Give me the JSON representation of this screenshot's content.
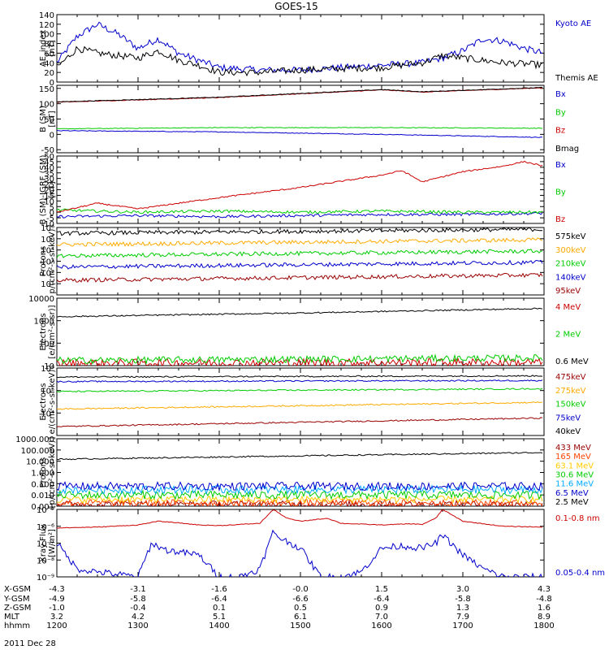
{
  "title": "GOES-15",
  "date_label": "2011 Dec 28",
  "time_axis": {
    "row_labels": [
      "X-GSM",
      "Y-GSM",
      "Z-GSM",
      "MLT",
      "hhmm"
    ],
    "columns": [
      {
        "time": "1200",
        "values": [
          "-4.3",
          "-4.9",
          "-1.0",
          "3.2",
          "1200"
        ]
      },
      {
        "time": "1300",
        "values": [
          "-3.1",
          "-5.8",
          "-0.4",
          "4.2",
          "1300"
        ]
      },
      {
        "time": "1400",
        "values": [
          "-1.6",
          "-6.4",
          "0.1",
          "5.1",
          "1400"
        ]
      },
      {
        "time": "1500",
        "values": [
          "-0.0",
          "-6.6",
          "0.5",
          "6.1",
          "1500"
        ]
      },
      {
        "time": "1600",
        "values": [
          "1.5",
          "-6.4",
          "0.9",
          "7.0",
          "1600"
        ]
      },
      {
        "time": "1700",
        "values": [
          "3.0",
          "-5.8",
          "1.3",
          "7.9",
          "1700"
        ]
      },
      {
        "time": "1800",
        "values": [
          "4.3",
          "-4.8",
          "1.6",
          "8.9",
          "1800"
        ]
      }
    ]
  },
  "chart_data": [
    {
      "type": "line",
      "name": "ae",
      "ylabel": [
        "AE_index",
        "[nT]"
      ],
      "yscale": "linear",
      "ylim": [
        0,
        140
      ],
      "yticks": [
        "0",
        "20",
        "40",
        "60",
        "80",
        "100",
        "120",
        "140"
      ],
      "series": [
        {
          "name": "Kyoto AE",
          "color": "#0000cc",
          "noise": 0.05,
          "x": [
            "1200",
            "1215",
            "1230",
            "1245",
            "1300",
            "1315",
            "1330",
            "1345",
            "1400",
            "1430",
            "1500",
            "1530",
            "1600",
            "1630",
            "1645",
            "1700",
            "1715",
            "1730",
            "1745",
            "1800"
          ],
          "y": [
            40,
            95,
            120,
            100,
            70,
            90,
            60,
            45,
            30,
            25,
            25,
            30,
            35,
            40,
            50,
            65,
            90,
            85,
            70,
            60
          ]
        },
        {
          "name": "Themis AE",
          "color": "#000000",
          "noise": 0.05,
          "x": [
            "1200",
            "1215",
            "1230",
            "1245",
            "1300",
            "1315",
            "1330",
            "1345",
            "1400",
            "1430",
            "1500",
            "1530",
            "1600",
            "1630",
            "1645",
            "1700",
            "1715",
            "1730",
            "1745",
            "1800"
          ],
          "y": [
            30,
            70,
            60,
            55,
            50,
            65,
            45,
            35,
            20,
            20,
            25,
            28,
            30,
            40,
            55,
            50,
            45,
            40,
            38,
            35
          ]
        }
      ]
    },
    {
      "type": "line",
      "name": "b_sm",
      "ylabel": [
        "B (SM)",
        "[nT]"
      ],
      "yscale": "linear",
      "ylim": [
        -60,
        160
      ],
      "yticks": [
        "-50",
        "0",
        "50",
        "100",
        "150"
      ],
      "series": [
        {
          "name": "Bx",
          "color": "#0000cc",
          "noise": 0.005,
          "x": [
            "1200",
            "1400",
            "1600",
            "1800"
          ],
          "y": [
            12,
            8,
            0,
            -10
          ]
        },
        {
          "name": "By",
          "color": "#00cc00",
          "noise": 0.005,
          "x": [
            "1200",
            "1400",
            "1600",
            "1800"
          ],
          "y": [
            18,
            22,
            22,
            20
          ]
        },
        {
          "name": "Bz",
          "color": "#cc0000",
          "noise": 0.005,
          "x": [
            "1200",
            "1400",
            "1600",
            "1630",
            "1800"
          ],
          "y": [
            105,
            120,
            145,
            138,
            152
          ]
        },
        {
          "name": "Bmag",
          "color": "#000000",
          "noise": 0.005,
          "x": [
            "1200",
            "1400",
            "1600",
            "1630",
            "1800"
          ],
          "y": [
            106,
            121,
            146,
            139,
            153
          ]
        }
      ]
    },
    {
      "type": "line",
      "name": "b_igrf",
      "ylabel": [
        "B (SM)-IGRF (SM)",
        "[nT]"
      ],
      "yscale": "linear",
      "ylim": [
        -10,
        50
      ],
      "yticks": [
        "-10",
        "-5",
        "0",
        "5",
        "10",
        "15",
        "20",
        "25",
        "30",
        "35",
        "40",
        "45",
        "50"
      ],
      "series": [
        {
          "name": "Bx",
          "color": "#0000cc",
          "noise": 0.02,
          "x": [
            "1200",
            "1300",
            "1400",
            "1500",
            "1600",
            "1700",
            "1800"
          ],
          "y": [
            -4,
            -3,
            -4,
            -3,
            -2,
            -2,
            -1
          ]
        },
        {
          "name": "By",
          "color": "#00cc00",
          "noise": 0.02,
          "x": [
            "1200",
            "1300",
            "1400",
            "1500",
            "1600",
            "1700",
            "1800"
          ],
          "y": [
            2,
            0,
            1,
            0,
            1,
            0,
            0
          ]
        },
        {
          "name": "Bz",
          "color": "#cc0000",
          "noise": 0.01,
          "x": [
            "1200",
            "1230",
            "1300",
            "1330",
            "1400",
            "1500",
            "1600",
            "1615",
            "1630",
            "1700",
            "1730",
            "1745",
            "1800"
          ],
          "y": [
            0,
            8,
            3,
            8,
            13,
            22,
            33,
            37,
            27,
            36,
            41,
            45,
            41
          ]
        }
      ]
    },
    {
      "type": "line",
      "name": "protons_low",
      "ylabel": [
        "Protons",
        "p/(cm²-s-sr-keV)"
      ],
      "yscale": "log",
      "ylim": [
        1,
        1000000
      ],
      "yticks": [
        "10¹",
        "10²",
        "10³",
        "10⁴",
        "10⁵",
        "10⁶"
      ],
      "series": [
        {
          "name": "575keV",
          "color": "#000000",
          "noise": 0.03,
          "x": [
            "1200",
            "1800"
          ],
          "y": [
            300000,
            700000
          ]
        },
        {
          "name": "300keV",
          "color": "#ffaa00",
          "noise": 0.03,
          "x": [
            "1200",
            "1800"
          ],
          "y": [
            30000,
            80000
          ]
        },
        {
          "name": "210keV",
          "color": "#00cc00",
          "noise": 0.03,
          "x": [
            "1200",
            "1800"
          ],
          "y": [
            3000,
            8000
          ]
        },
        {
          "name": "140keV",
          "color": "#0000cc",
          "noise": 0.03,
          "x": [
            "1200",
            "1800"
          ],
          "y": [
            300,
            800
          ]
        },
        {
          "name": "95keV",
          "color": "#990000",
          "noise": 0.03,
          "x": [
            "1200",
            "1800"
          ],
          "y": [
            20,
            60
          ]
        }
      ]
    },
    {
      "type": "line",
      "name": "electrons_mev",
      "ylabel": [
        "Electrons",
        "[e/(cm²-s-sr)]"
      ],
      "yscale": "log",
      "ylim": [
        10,
        10000
      ],
      "yticks": [
        "10",
        "100",
        "1000",
        "10000"
      ],
      "series": [
        {
          "name": "4 MeV",
          "color": "#cc0000",
          "noise": 0.06,
          "x": [
            "1200",
            "1800"
          ],
          "y": [
            13,
            14
          ]
        },
        {
          "name": "2 MeV",
          "color": "#00cc00",
          "noise": 0.05,
          "x": [
            "1200",
            "1800"
          ],
          "y": [
            17,
            22
          ]
        },
        {
          "name": "0.6 MeV",
          "color": "#000000",
          "noise": 0.01,
          "x": [
            "1200",
            "1500",
            "1800"
          ],
          "y": [
            1500,
            2200,
            3500
          ]
        }
      ]
    },
    {
      "type": "line",
      "name": "electrons_kev",
      "ylabel": [
        "Electrons",
        "e/(cm²-s-sr-keV)"
      ],
      "yscale": "log",
      "ylim": [
        1000,
        1000000
      ],
      "yticks": [
        "10⁴",
        "10⁵",
        "10⁶"
      ],
      "series": [
        {
          "name": "475keV",
          "color": "#990000",
          "noise": 0.01,
          "x": [
            "1200",
            "1800"
          ],
          "y": [
            2500,
            6000
          ]
        },
        {
          "name": "275keV",
          "color": "#ffaa00",
          "noise": 0.01,
          "x": [
            "1200",
            "1800"
          ],
          "y": [
            15000,
            30000
          ]
        },
        {
          "name": "150keV",
          "color": "#00cc00",
          "noise": 0.01,
          "x": [
            "1200",
            "1800"
          ],
          "y": [
            90000,
            120000
          ]
        },
        {
          "name": "75keV",
          "color": "#0000cc",
          "noise": 0.01,
          "x": [
            "1200",
            "1800"
          ],
          "y": [
            250000,
            280000
          ]
        },
        {
          "name": "40keV",
          "color": "#000000",
          "noise": 0.01,
          "x": [
            "1200",
            "1800"
          ],
          "y": [
            400000,
            450000
          ]
        }
      ]
    },
    {
      "type": "line",
      "name": "protons_mev",
      "ylabel": [
        "Protons",
        "[p/(cm²-s-sr-keV)]"
      ],
      "yscale": "log",
      "ylim": [
        0.001,
        1000
      ],
      "yticks": [
        "0.001",
        "0.010",
        "0.100",
        "1.000",
        "10.000",
        "100.000",
        "1000.000"
      ],
      "series": [
        {
          "name": "433 MeV",
          "color": "#990000",
          "noise": 0.05,
          "x": [
            "1200",
            "1800"
          ],
          "y": [
            0.0015,
            0.0015
          ]
        },
        {
          "name": "165 MeV",
          "color": "#ff4400",
          "noise": 0.05,
          "x": [
            "1200",
            "1800"
          ],
          "y": [
            0.002,
            0.002
          ]
        },
        {
          "name": "63.1 MeV",
          "color": "#ffcc00",
          "noise": 0.05,
          "x": [
            "1200",
            "1800"
          ],
          "y": [
            0.004,
            0.004
          ]
        },
        {
          "name": "30.6 MeV",
          "color": "#00cc00",
          "noise": 0.06,
          "x": [
            "1200",
            "1800"
          ],
          "y": [
            0.01,
            0.01
          ]
        },
        {
          "name": "11.6 MeV",
          "color": "#00aaff",
          "noise": 0.06,
          "x": [
            "1200",
            "1800"
          ],
          "y": [
            0.03,
            0.03
          ]
        },
        {
          "name": "6.5 MeV",
          "color": "#0000cc",
          "noise": 0.06,
          "x": [
            "1200",
            "1800"
          ],
          "y": [
            0.06,
            0.06
          ]
        },
        {
          "name": "2.5 MeV",
          "color": "#000000",
          "noise": 0.01,
          "x": [
            "1200",
            "1500",
            "1800"
          ],
          "y": [
            15,
            30,
            60
          ]
        }
      ]
    },
    {
      "type": "line",
      "name": "xray",
      "ylabel": [
        "Xray Flux",
        "[W/m²]"
      ],
      "yscale": "log",
      "ylim": [
        1e-09,
        1e-05
      ],
      "yticks": [
        "10⁻⁹",
        "10⁻⁸",
        "10⁻⁷",
        "10⁻⁶",
        "10⁻⁵"
      ],
      "series": [
        {
          "name": "0.1-0.8 nm",
          "color": "#cc0000",
          "noise": 0.005,
          "x": [
            "1200",
            "1230",
            "1300",
            "1315",
            "1330",
            "1345",
            "1400",
            "1430",
            "1440",
            "1450",
            "1500",
            "1520",
            "1530",
            "1600",
            "1620",
            "1630",
            "1640",
            "1645",
            "1700",
            "1730",
            "1800"
          ],
          "y": [
            8e-07,
            9e-07,
            1.2e-06,
            2e-06,
            1.6e-06,
            1.2e-06,
            1.1e-06,
            1.5e-06,
            1e-05,
            3e-06,
            2e-06,
            3e-06,
            1.5e-06,
            1.2e-06,
            1.4e-06,
            1.3e-06,
            3e-06,
            1e-05,
            2e-06,
            1e-06,
            9e-07
          ]
        },
        {
          "name": "0.05-0.4 nm",
          "color": "#0000cc",
          "noise": 0.05,
          "x": [
            "1200",
            "1215",
            "1230",
            "1300",
            "1310",
            "1320",
            "1330",
            "1345",
            "1400",
            "1415",
            "1430",
            "1440",
            "1445",
            "1500",
            "1515",
            "1530",
            "1545",
            "1600",
            "1615",
            "1630",
            "1640",
            "1645",
            "1700",
            "1715",
            "1730",
            "1745",
            "1800"
          ],
          "y": [
            1e-07,
            3e-09,
            2e-09,
            1e-09,
            1e-07,
            4e-08,
            3e-08,
            2e-08,
            1e-09,
            1e-09,
            3e-09,
            5e-07,
            2e-07,
            5e-08,
            1e-09,
            1e-09,
            2e-09,
            5e-08,
            7e-08,
            5e-08,
            1e-07,
            3e-07,
            2e-08,
            3e-09,
            1e-09,
            1e-09,
            1e-09
          ]
        }
      ]
    }
  ]
}
